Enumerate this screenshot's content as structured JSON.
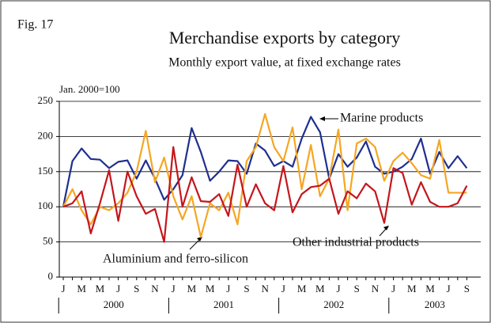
{
  "chart_data": {
    "type": "line",
    "figure_label": "Fig. 17",
    "title": "Merchandise exports by category",
    "subtitle": "Monthly export value, at fixed exchange rates",
    "y_axis_label": "Jan. 2000=100",
    "categories": [
      "J",
      null,
      "M",
      null,
      "M",
      null,
      "J",
      null,
      "S",
      null,
      "N",
      null,
      "J",
      null,
      "M",
      null,
      "M",
      null,
      "J",
      null,
      "S",
      null,
      "N",
      null,
      "J",
      null,
      "M",
      null,
      "M",
      null,
      "J",
      null,
      "S",
      null,
      "N",
      null,
      "J",
      null,
      "M",
      null,
      "M",
      null,
      "J",
      null,
      "S"
    ],
    "year_labels": [
      "2000",
      "2001",
      "2002",
      "2003"
    ],
    "series": [
      {
        "name": "Marine products",
        "color": "#1f2f8f",
        "values": [
          100,
          165,
          183,
          168,
          167,
          155,
          164,
          166,
          140,
          166,
          140,
          110,
          125,
          145,
          212,
          178,
          137,
          150,
          166,
          165,
          147,
          190,
          180,
          158,
          165,
          157,
          197,
          228,
          206,
          140,
          175,
          157,
          170,
          193,
          157,
          147,
          150,
          157,
          168,
          197,
          147,
          178,
          155,
          172,
          155
        ]
      },
      {
        "name": "Other industrial products",
        "color": "#f5a623",
        "values": [
          100,
          125,
          95,
          75,
          100,
          95,
          105,
          120,
          150,
          208,
          135,
          170,
          115,
          82,
          115,
          57,
          105,
          95,
          120,
          75,
          165,
          185,
          232,
          185,
          165,
          213,
          125,
          188,
          115,
          140,
          210,
          95,
          190,
          197,
          185,
          137,
          165,
          177,
          162,
          145,
          140,
          195,
          120,
          120,
          120
        ]
      },
      {
        "name": "Aluminium and ferro-silicon",
        "color": "#c4161c",
        "values": [
          100,
          105,
          122,
          62,
          105,
          152,
          80,
          150,
          115,
          90,
          97,
          50,
          185,
          100,
          142,
          108,
          107,
          118,
          87,
          160,
          100,
          132,
          105,
          95,
          158,
          92,
          118,
          128,
          130,
          140,
          90,
          122,
          112,
          133,
          122,
          77,
          155,
          148,
          103,
          135,
          107,
          100,
          100,
          105,
          130
        ]
      }
    ],
    "ylim": [
      0,
      250
    ],
    "yticks": [
      0,
      50,
      100,
      150,
      200,
      250
    ],
    "grid": true
  }
}
